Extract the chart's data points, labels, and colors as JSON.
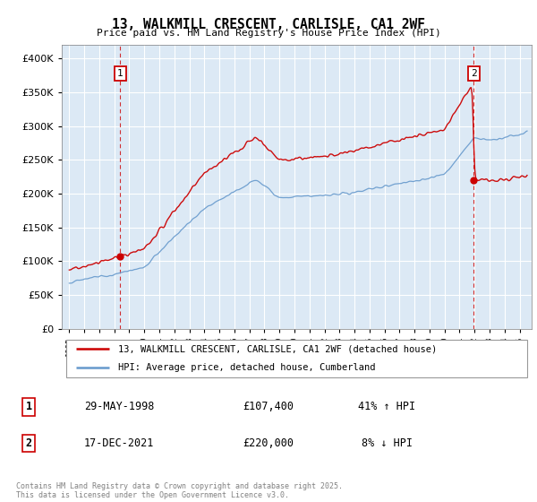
{
  "title": "13, WALKMILL CRESCENT, CARLISLE, CA1 2WF",
  "subtitle": "Price paid vs. HM Land Registry's House Price Index (HPI)",
  "legend_line1": "13, WALKMILL CRESCENT, CARLISLE, CA1 2WF (detached house)",
  "legend_line2": "HPI: Average price, detached house, Cumberland",
  "purchase1_label": "1",
  "purchase1_date": "29-MAY-1998",
  "purchase1_price": "£107,400",
  "purchase1_hpi": "41% ↑ HPI",
  "purchase2_label": "2",
  "purchase2_date": "17-DEC-2021",
  "purchase2_price": "£220,000",
  "purchase2_hpi": "8% ↓ HPI",
  "price_line_color": "#cc0000",
  "hpi_line_color": "#6699cc",
  "vline_color": "#cc0000",
  "purchase1_year": 1998.4,
  "purchase2_year": 2021.95,
  "purchase1_price_val": 107400,
  "purchase2_price_val": 220000,
  "ylim_max": 420000,
  "xlim_min": 1994.5,
  "xlim_max": 2025.8,
  "bg_color": "#dce9f5",
  "copyright": "Contains HM Land Registry data © Crown copyright and database right 2025.\nThis data is licensed under the Open Government Licence v3.0."
}
